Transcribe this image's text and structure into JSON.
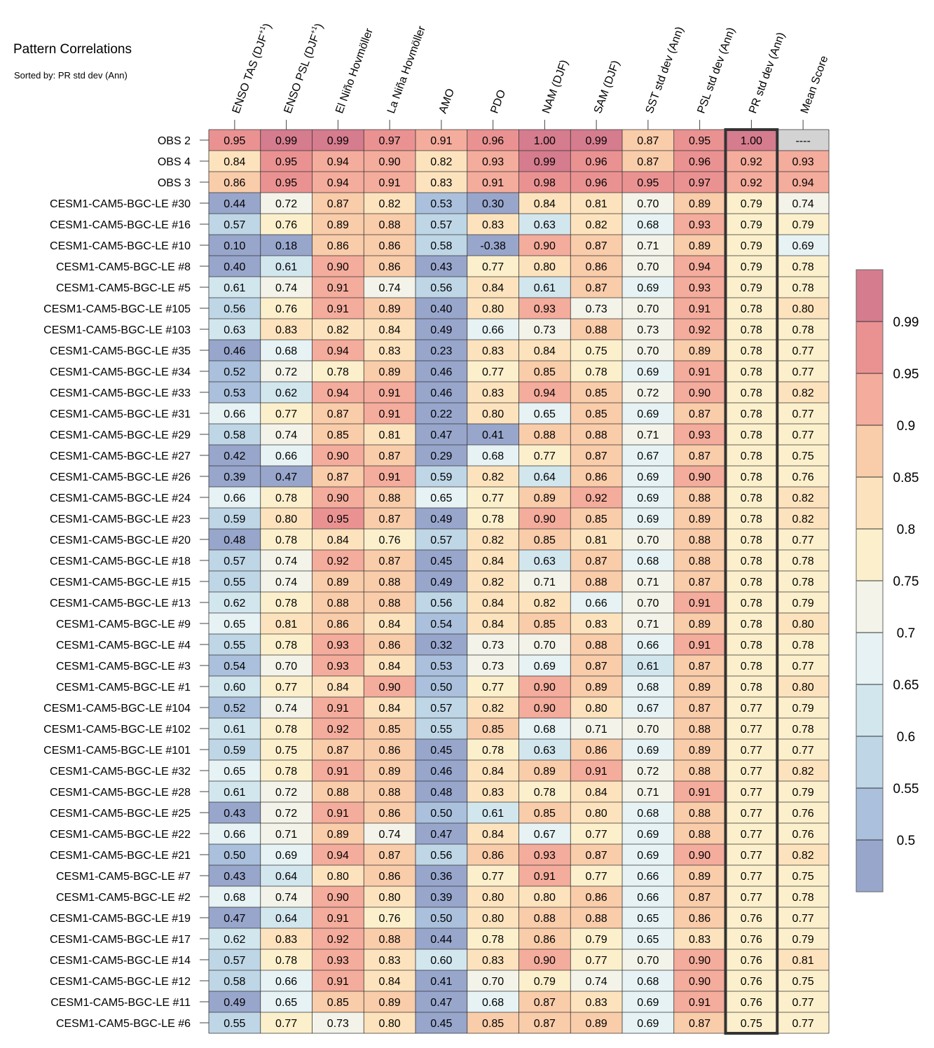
{
  "title": "Pattern Correlations",
  "subtitle": "Sorted by: PR std dev (Ann)",
  "chart_data": {
    "type": "heatmap",
    "columns": [
      {
        "label": "ENSO TAS (DJF",
        "sup": "+1",
        "close": ")"
      },
      {
        "label": "ENSO PSL (DJF",
        "sup": "+1",
        "close": ")"
      },
      {
        "label": "El Niño Hovmöller",
        "sup": "",
        "close": ""
      },
      {
        "label": "La Niña Hovmöller",
        "sup": "",
        "close": ""
      },
      {
        "label": "AMO",
        "sup": "",
        "close": ""
      },
      {
        "label": "PDO",
        "sup": "",
        "close": ""
      },
      {
        "label": "NAM (DJF)",
        "sup": "",
        "close": ""
      },
      {
        "label": "SAM (DJF)",
        "sup": "",
        "close": ""
      },
      {
        "label": "SST std dev (Ann)",
        "sup": "",
        "close": ""
      },
      {
        "label": "PSL std dev (Ann)",
        "sup": "",
        "close": ""
      },
      {
        "label": "PR std dev (Ann)",
        "sup": "",
        "close": ""
      },
      {
        "label": "Mean Score",
        "sup": "",
        "close": ""
      }
    ],
    "sorted_column": "PR std dev (Ann)",
    "missing_label": "----",
    "rows": [
      {
        "label": "OBS 2",
        "values": [
          "0.95",
          "0.99",
          "0.99",
          "0.97",
          "0.91",
          "0.96",
          "1.00",
          "0.99",
          "0.87",
          "0.95",
          "1.00",
          null
        ]
      },
      {
        "label": "OBS 4",
        "values": [
          "0.84",
          "0.95",
          "0.94",
          "0.90",
          "0.82",
          "0.93",
          "0.99",
          "0.96",
          "0.87",
          "0.96",
          "0.92",
          "0.93"
        ]
      },
      {
        "label": "OBS 3",
        "values": [
          "0.86",
          "0.95",
          "0.94",
          "0.91",
          "0.83",
          "0.91",
          "0.98",
          "0.96",
          "0.95",
          "0.97",
          "0.92",
          "0.94"
        ]
      },
      {
        "label": "CESM1-CAM5-BGC-LE #30",
        "values": [
          "0.44",
          "0.72",
          "0.87",
          "0.82",
          "0.53",
          "0.30",
          "0.84",
          "0.81",
          "0.70",
          "0.89",
          "0.79",
          "0.74"
        ]
      },
      {
        "label": "CESM1-CAM5-BGC-LE #16",
        "values": [
          "0.57",
          "0.76",
          "0.89",
          "0.88",
          "0.57",
          "0.83",
          "0.63",
          "0.82",
          "0.68",
          "0.93",
          "0.79",
          "0.79"
        ]
      },
      {
        "label": "CESM1-CAM5-BGC-LE #10",
        "values": [
          "0.10",
          "0.18",
          "0.86",
          "0.86",
          "0.58",
          "-0.38",
          "0.90",
          "0.87",
          "0.71",
          "0.89",
          "0.79",
          "0.69"
        ]
      },
      {
        "label": "CESM1-CAM5-BGC-LE #8",
        "values": [
          "0.40",
          "0.61",
          "0.90",
          "0.86",
          "0.43",
          "0.77",
          "0.80",
          "0.86",
          "0.70",
          "0.94",
          "0.79",
          "0.78"
        ]
      },
      {
        "label": "CESM1-CAM5-BGC-LE #5",
        "values": [
          "0.61",
          "0.74",
          "0.91",
          "0.74",
          "0.56",
          "0.84",
          "0.61",
          "0.87",
          "0.69",
          "0.93",
          "0.79",
          "0.78"
        ]
      },
      {
        "label": "CESM1-CAM5-BGC-LE #105",
        "values": [
          "0.56",
          "0.76",
          "0.91",
          "0.89",
          "0.40",
          "0.80",
          "0.93",
          "0.73",
          "0.70",
          "0.91",
          "0.78",
          "0.80"
        ]
      },
      {
        "label": "CESM1-CAM5-BGC-LE #103",
        "values": [
          "0.63",
          "0.83",
          "0.82",
          "0.84",
          "0.49",
          "0.66",
          "0.73",
          "0.88",
          "0.73",
          "0.92",
          "0.78",
          "0.78"
        ]
      },
      {
        "label": "CESM1-CAM5-BGC-LE #35",
        "values": [
          "0.46",
          "0.68",
          "0.94",
          "0.83",
          "0.23",
          "0.83",
          "0.84",
          "0.75",
          "0.70",
          "0.89",
          "0.78",
          "0.77"
        ]
      },
      {
        "label": "CESM1-CAM5-BGC-LE #34",
        "values": [
          "0.52",
          "0.72",
          "0.78",
          "0.89",
          "0.46",
          "0.77",
          "0.85",
          "0.78",
          "0.69",
          "0.91",
          "0.78",
          "0.77"
        ]
      },
      {
        "label": "CESM1-CAM5-BGC-LE #33",
        "values": [
          "0.53",
          "0.62",
          "0.94",
          "0.91",
          "0.46",
          "0.83",
          "0.94",
          "0.85",
          "0.72",
          "0.90",
          "0.78",
          "0.82"
        ]
      },
      {
        "label": "CESM1-CAM5-BGC-LE #31",
        "values": [
          "0.66",
          "0.77",
          "0.87",
          "0.91",
          "0.22",
          "0.80",
          "0.65",
          "0.85",
          "0.69",
          "0.87",
          "0.78",
          "0.77"
        ]
      },
      {
        "label": "CESM1-CAM5-BGC-LE #29",
        "values": [
          "0.58",
          "0.74",
          "0.85",
          "0.81",
          "0.47",
          "0.41",
          "0.88",
          "0.88",
          "0.71",
          "0.93",
          "0.78",
          "0.77"
        ]
      },
      {
        "label": "CESM1-CAM5-BGC-LE #27",
        "values": [
          "0.42",
          "0.66",
          "0.90",
          "0.87",
          "0.29",
          "0.68",
          "0.77",
          "0.87",
          "0.67",
          "0.87",
          "0.78",
          "0.75"
        ]
      },
      {
        "label": "CESM1-CAM5-BGC-LE #26",
        "values": [
          "0.39",
          "0.47",
          "0.87",
          "0.91",
          "0.59",
          "0.82",
          "0.64",
          "0.86",
          "0.69",
          "0.90",
          "0.78",
          "0.76"
        ]
      },
      {
        "label": "CESM1-CAM5-BGC-LE #24",
        "values": [
          "0.66",
          "0.78",
          "0.90",
          "0.88",
          "0.65",
          "0.77",
          "0.89",
          "0.92",
          "0.69",
          "0.88",
          "0.78",
          "0.82"
        ]
      },
      {
        "label": "CESM1-CAM5-BGC-LE #23",
        "values": [
          "0.59",
          "0.80",
          "0.95",
          "0.87",
          "0.49",
          "0.78",
          "0.90",
          "0.85",
          "0.69",
          "0.89",
          "0.78",
          "0.82"
        ]
      },
      {
        "label": "CESM1-CAM5-BGC-LE #20",
        "values": [
          "0.48",
          "0.78",
          "0.84",
          "0.76",
          "0.57",
          "0.82",
          "0.85",
          "0.81",
          "0.70",
          "0.88",
          "0.78",
          "0.77"
        ]
      },
      {
        "label": "CESM1-CAM5-BGC-LE #18",
        "values": [
          "0.57",
          "0.74",
          "0.92",
          "0.87",
          "0.45",
          "0.84",
          "0.63",
          "0.87",
          "0.68",
          "0.88",
          "0.78",
          "0.78"
        ]
      },
      {
        "label": "CESM1-CAM5-BGC-LE #15",
        "values": [
          "0.55",
          "0.74",
          "0.89",
          "0.88",
          "0.49",
          "0.82",
          "0.71",
          "0.88",
          "0.71",
          "0.87",
          "0.78",
          "0.78"
        ]
      },
      {
        "label": "CESM1-CAM5-BGC-LE #13",
        "values": [
          "0.62",
          "0.78",
          "0.88",
          "0.88",
          "0.56",
          "0.84",
          "0.82",
          "0.66",
          "0.70",
          "0.91",
          "0.78",
          "0.79"
        ]
      },
      {
        "label": "CESM1-CAM5-BGC-LE #9",
        "values": [
          "0.65",
          "0.81",
          "0.86",
          "0.84",
          "0.54",
          "0.84",
          "0.85",
          "0.83",
          "0.71",
          "0.89",
          "0.78",
          "0.80"
        ]
      },
      {
        "label": "CESM1-CAM5-BGC-LE #4",
        "values": [
          "0.55",
          "0.78",
          "0.93",
          "0.86",
          "0.32",
          "0.73",
          "0.70",
          "0.88",
          "0.66",
          "0.91",
          "0.78",
          "0.78"
        ]
      },
      {
        "label": "CESM1-CAM5-BGC-LE #3",
        "values": [
          "0.54",
          "0.70",
          "0.93",
          "0.84",
          "0.53",
          "0.73",
          "0.69",
          "0.87",
          "0.61",
          "0.87",
          "0.78",
          "0.77"
        ]
      },
      {
        "label": "CESM1-CAM5-BGC-LE #1",
        "values": [
          "0.60",
          "0.77",
          "0.84",
          "0.90",
          "0.50",
          "0.77",
          "0.90",
          "0.89",
          "0.68",
          "0.89",
          "0.78",
          "0.80"
        ]
      },
      {
        "label": "CESM1-CAM5-BGC-LE #104",
        "values": [
          "0.52",
          "0.74",
          "0.91",
          "0.84",
          "0.57",
          "0.82",
          "0.90",
          "0.80",
          "0.67",
          "0.87",
          "0.77",
          "0.79"
        ]
      },
      {
        "label": "CESM1-CAM5-BGC-LE #102",
        "values": [
          "0.61",
          "0.78",
          "0.92",
          "0.85",
          "0.55",
          "0.85",
          "0.68",
          "0.71",
          "0.70",
          "0.88",
          "0.77",
          "0.78"
        ]
      },
      {
        "label": "CESM1-CAM5-BGC-LE #101",
        "values": [
          "0.59",
          "0.75",
          "0.87",
          "0.86",
          "0.45",
          "0.78",
          "0.63",
          "0.86",
          "0.69",
          "0.89",
          "0.77",
          "0.77"
        ]
      },
      {
        "label": "CESM1-CAM5-BGC-LE #32",
        "values": [
          "0.65",
          "0.78",
          "0.91",
          "0.89",
          "0.46",
          "0.84",
          "0.89",
          "0.91",
          "0.72",
          "0.88",
          "0.77",
          "0.82"
        ]
      },
      {
        "label": "CESM1-CAM5-BGC-LE #28",
        "values": [
          "0.61",
          "0.72",
          "0.88",
          "0.88",
          "0.48",
          "0.83",
          "0.78",
          "0.84",
          "0.71",
          "0.91",
          "0.77",
          "0.79"
        ]
      },
      {
        "label": "CESM1-CAM5-BGC-LE #25",
        "values": [
          "0.43",
          "0.72",
          "0.91",
          "0.86",
          "0.50",
          "0.61",
          "0.85",
          "0.80",
          "0.68",
          "0.88",
          "0.77",
          "0.76"
        ]
      },
      {
        "label": "CESM1-CAM5-BGC-LE #22",
        "values": [
          "0.66",
          "0.71",
          "0.89",
          "0.74",
          "0.47",
          "0.84",
          "0.67",
          "0.77",
          "0.69",
          "0.88",
          "0.77",
          "0.76"
        ]
      },
      {
        "label": "CESM1-CAM5-BGC-LE #21",
        "values": [
          "0.50",
          "0.69",
          "0.94",
          "0.87",
          "0.56",
          "0.86",
          "0.93",
          "0.87",
          "0.69",
          "0.90",
          "0.77",
          "0.82"
        ]
      },
      {
        "label": "CESM1-CAM5-BGC-LE #7",
        "values": [
          "0.43",
          "0.64",
          "0.80",
          "0.86",
          "0.36",
          "0.77",
          "0.91",
          "0.77",
          "0.66",
          "0.89",
          "0.77",
          "0.75"
        ]
      },
      {
        "label": "CESM1-CAM5-BGC-LE #2",
        "values": [
          "0.68",
          "0.74",
          "0.90",
          "0.80",
          "0.39",
          "0.80",
          "0.80",
          "0.86",
          "0.66",
          "0.87",
          "0.77",
          "0.78"
        ]
      },
      {
        "label": "CESM1-CAM5-BGC-LE #19",
        "values": [
          "0.47",
          "0.64",
          "0.91",
          "0.76",
          "0.50",
          "0.80",
          "0.88",
          "0.88",
          "0.65",
          "0.86",
          "0.76",
          "0.77"
        ]
      },
      {
        "label": "CESM1-CAM5-BGC-LE #17",
        "values": [
          "0.62",
          "0.83",
          "0.92",
          "0.88",
          "0.44",
          "0.78",
          "0.86",
          "0.79",
          "0.65",
          "0.83",
          "0.76",
          "0.79"
        ]
      },
      {
        "label": "CESM1-CAM5-BGC-LE #14",
        "values": [
          "0.57",
          "0.78",
          "0.93",
          "0.83",
          "0.60",
          "0.83",
          "0.90",
          "0.77",
          "0.70",
          "0.90",
          "0.76",
          "0.81"
        ]
      },
      {
        "label": "CESM1-CAM5-BGC-LE #12",
        "values": [
          "0.58",
          "0.66",
          "0.91",
          "0.84",
          "0.41",
          "0.70",
          "0.79",
          "0.74",
          "0.68",
          "0.90",
          "0.76",
          "0.75"
        ]
      },
      {
        "label": "CESM1-CAM5-BGC-LE #11",
        "values": [
          "0.49",
          "0.65",
          "0.85",
          "0.89",
          "0.47",
          "0.68",
          "0.87",
          "0.83",
          "0.69",
          "0.91",
          "0.76",
          "0.77"
        ]
      },
      {
        "label": "CESM1-CAM5-BGC-LE #6",
        "values": [
          "0.55",
          "0.77",
          "0.73",
          "0.80",
          "0.45",
          "0.85",
          "0.87",
          "0.89",
          "0.69",
          "0.87",
          "0.75",
          "0.77"
        ]
      }
    ],
    "colorbar": {
      "tick_labels": [
        "0.5",
        "0.55",
        "0.6",
        "0.65",
        "0.7",
        "0.75",
        "0.8",
        "0.85",
        "0.9",
        "0.95",
        "0.99"
      ],
      "thresholds": [
        0.5,
        0.55,
        0.6,
        0.65,
        0.7,
        0.75,
        0.8,
        0.85,
        0.9,
        0.95,
        0.99
      ],
      "colors": [
        "#98a6cc",
        "#aac0dc",
        "#bed6e6",
        "#d2e6ee",
        "#e6f2f4",
        "#f3f3e9",
        "#fcf0cc",
        "#fde3bd",
        "#f9ccaa",
        "#f4ac9c",
        "#ea9292",
        "#d57c8e"
      ]
    },
    "missing_color": "#d3d3d3"
  }
}
